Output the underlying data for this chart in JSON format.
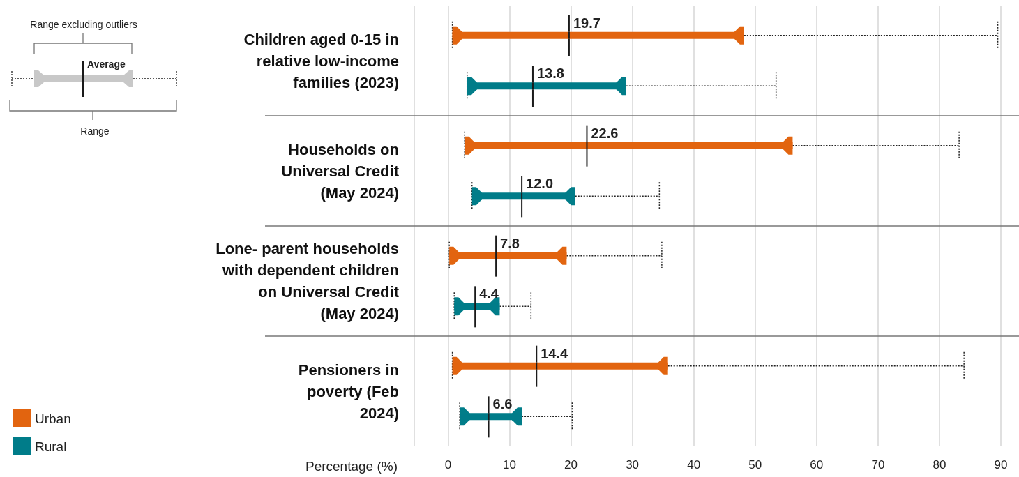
{
  "chart_data": {
    "type": "box",
    "orientation": "horizontal",
    "categories": [
      "Children aged 0-15 in\nrelative low-income\nfamilies (2023)",
      "Households on\nUniversal Credit\n(May 2024)",
      "Lone- parent households\nwith dependent children\non Universal Credit\n(May 2024)",
      "Pensioners in\npoverty (Feb\n2024)"
    ],
    "series": [
      {
        "name": "Urban",
        "color": "#e2640f",
        "boxes": [
          {
            "low": 0.7,
            "q1": 0.7,
            "q3": 48.2,
            "high": 89.5,
            "mean": 19.7
          },
          {
            "low": 2.7,
            "q1": 2.7,
            "q3": 56.1,
            "high": 83.2,
            "mean": 22.6
          },
          {
            "low": 0.2,
            "q1": 0.2,
            "q3": 19.3,
            "high": 34.8,
            "mean": 7.8
          },
          {
            "low": 0.7,
            "q1": 0.7,
            "q3": 35.8,
            "high": 84.0,
            "mean": 14.4
          }
        ]
      },
      {
        "name": "Rural",
        "color": "#007c89",
        "boxes": [
          {
            "low": 3.1,
            "q1": 3.1,
            "q3": 29.0,
            "high": 53.4,
            "mean": 13.8
          },
          {
            "low": 3.9,
            "q1": 3.9,
            "q3": 20.7,
            "high": 34.4,
            "mean": 12.0
          },
          {
            "low": 1.0,
            "q1": 1.0,
            "q3": 8.4,
            "high": 13.5,
            "mean": 4.4
          },
          {
            "low": 1.9,
            "q1": 1.9,
            "q3": 12.0,
            "high": 20.2,
            "mean": 6.6
          }
        ]
      }
    ],
    "xlabel": "Percentage (%)",
    "xlim": [
      -5.5,
      90
    ],
    "xticks": [
      {
        "value": -5.5,
        "label": null
      },
      0,
      10,
      20,
      30,
      40,
      50,
      60,
      70,
      80,
      90
    ],
    "grid": "x",
    "legend": "bottom left",
    "annotations": [
      "Range excluding outliers",
      "Average",
      "Range",
      "19.7",
      "13.8",
      "22.6",
      "12.0",
      "7.8",
      "4.4",
      "14.4",
      "6.6"
    ]
  }
}
